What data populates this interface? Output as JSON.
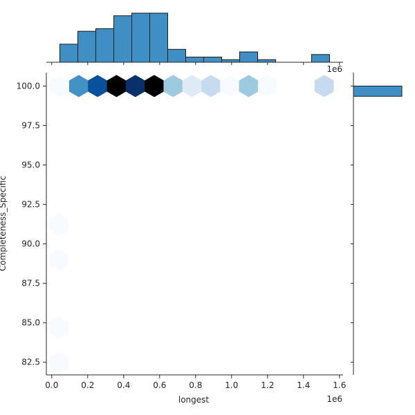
{
  "chart_data": {
    "type": "hexbin-joint",
    "xlabel": "longest",
    "ylabel": "Completeness_Specific",
    "x_offset_label": "1e6",
    "xlim": [
      -0.03,
      1.62
    ],
    "ylim": [
      81.7,
      100.85
    ],
    "x_ticks": [
      0.0,
      0.2,
      0.4,
      0.6,
      0.8,
      1.0,
      1.2,
      1.4,
      1.6
    ],
    "x_tick_labels": [
      "0.0",
      "0.2",
      "0.4",
      "0.6",
      "0.8",
      "1.0",
      "1.2",
      "1.4",
      "1.6"
    ],
    "y_ticks": [
      82.5,
      85.0,
      87.5,
      90.0,
      92.5,
      95.0,
      97.5,
      100.0
    ],
    "y_tick_labels": [
      "82.5",
      "85.0",
      "87.5",
      "90.0",
      "92.5",
      "95.0",
      "97.5",
      "100.0"
    ],
    "colors": {
      "scale": [
        "#f7fbff",
        "#deebf7",
        "#c6dbef",
        "#9ecae1",
        "#6baed6",
        "#4292c6",
        "#2171b5",
        "#08519c",
        "#08306b",
        "#000000"
      ],
      "hist_fill": "#3f8fc5",
      "hist_edge": "#1a1a1a"
    },
    "hexbins": [
      {
        "x": 0.04,
        "y": 100.0,
        "density": 0.03
      },
      {
        "x": 0.15,
        "y": 100.0,
        "density": 0.55
      },
      {
        "x": 0.255,
        "y": 100.0,
        "density": 0.78
      },
      {
        "x": 0.36,
        "y": 100.0,
        "density": 0.95
      },
      {
        "x": 0.465,
        "y": 100.0,
        "density": 0.85
      },
      {
        "x": 0.57,
        "y": 100.0,
        "density": 1.0
      },
      {
        "x": 0.675,
        "y": 100.0,
        "density": 0.33
      },
      {
        "x": 0.78,
        "y": 100.0,
        "density": 0.12
      },
      {
        "x": 0.885,
        "y": 100.0,
        "density": 0.2
      },
      {
        "x": 0.99,
        "y": 100.0,
        "density": 0.03
      },
      {
        "x": 1.095,
        "y": 100.0,
        "density": 0.33
      },
      {
        "x": 1.2,
        "y": 100.0,
        "density": 0.03
      },
      {
        "x": 1.515,
        "y": 100.0,
        "density": 0.2
      },
      {
        "x": 0.04,
        "y": 91.2,
        "density": 0.03
      },
      {
        "x": 0.04,
        "y": 89.0,
        "density": 0.03
      },
      {
        "x": 0.04,
        "y": 84.7,
        "density": 0.03
      },
      {
        "x": 0.04,
        "y": 82.5,
        "density": 0.03
      }
    ],
    "x_histogram": {
      "bin_edges": [
        0.045,
        0.145,
        0.245,
        0.345,
        0.445,
        0.545,
        0.645,
        0.745,
        0.845,
        0.945,
        1.045,
        1.145,
        1.245,
        1.345,
        1.445,
        1.545
      ],
      "counts": [
        7,
        12,
        13,
        18,
        19,
        19,
        5,
        2,
        2,
        1,
        4,
        1,
        0,
        0,
        3
      ]
    },
    "y_histogram": {
      "bins": [
        {
          "y_low": 99.35,
          "y_high": 100.0,
          "count": 52
        }
      ],
      "max_count": 52
    }
  }
}
